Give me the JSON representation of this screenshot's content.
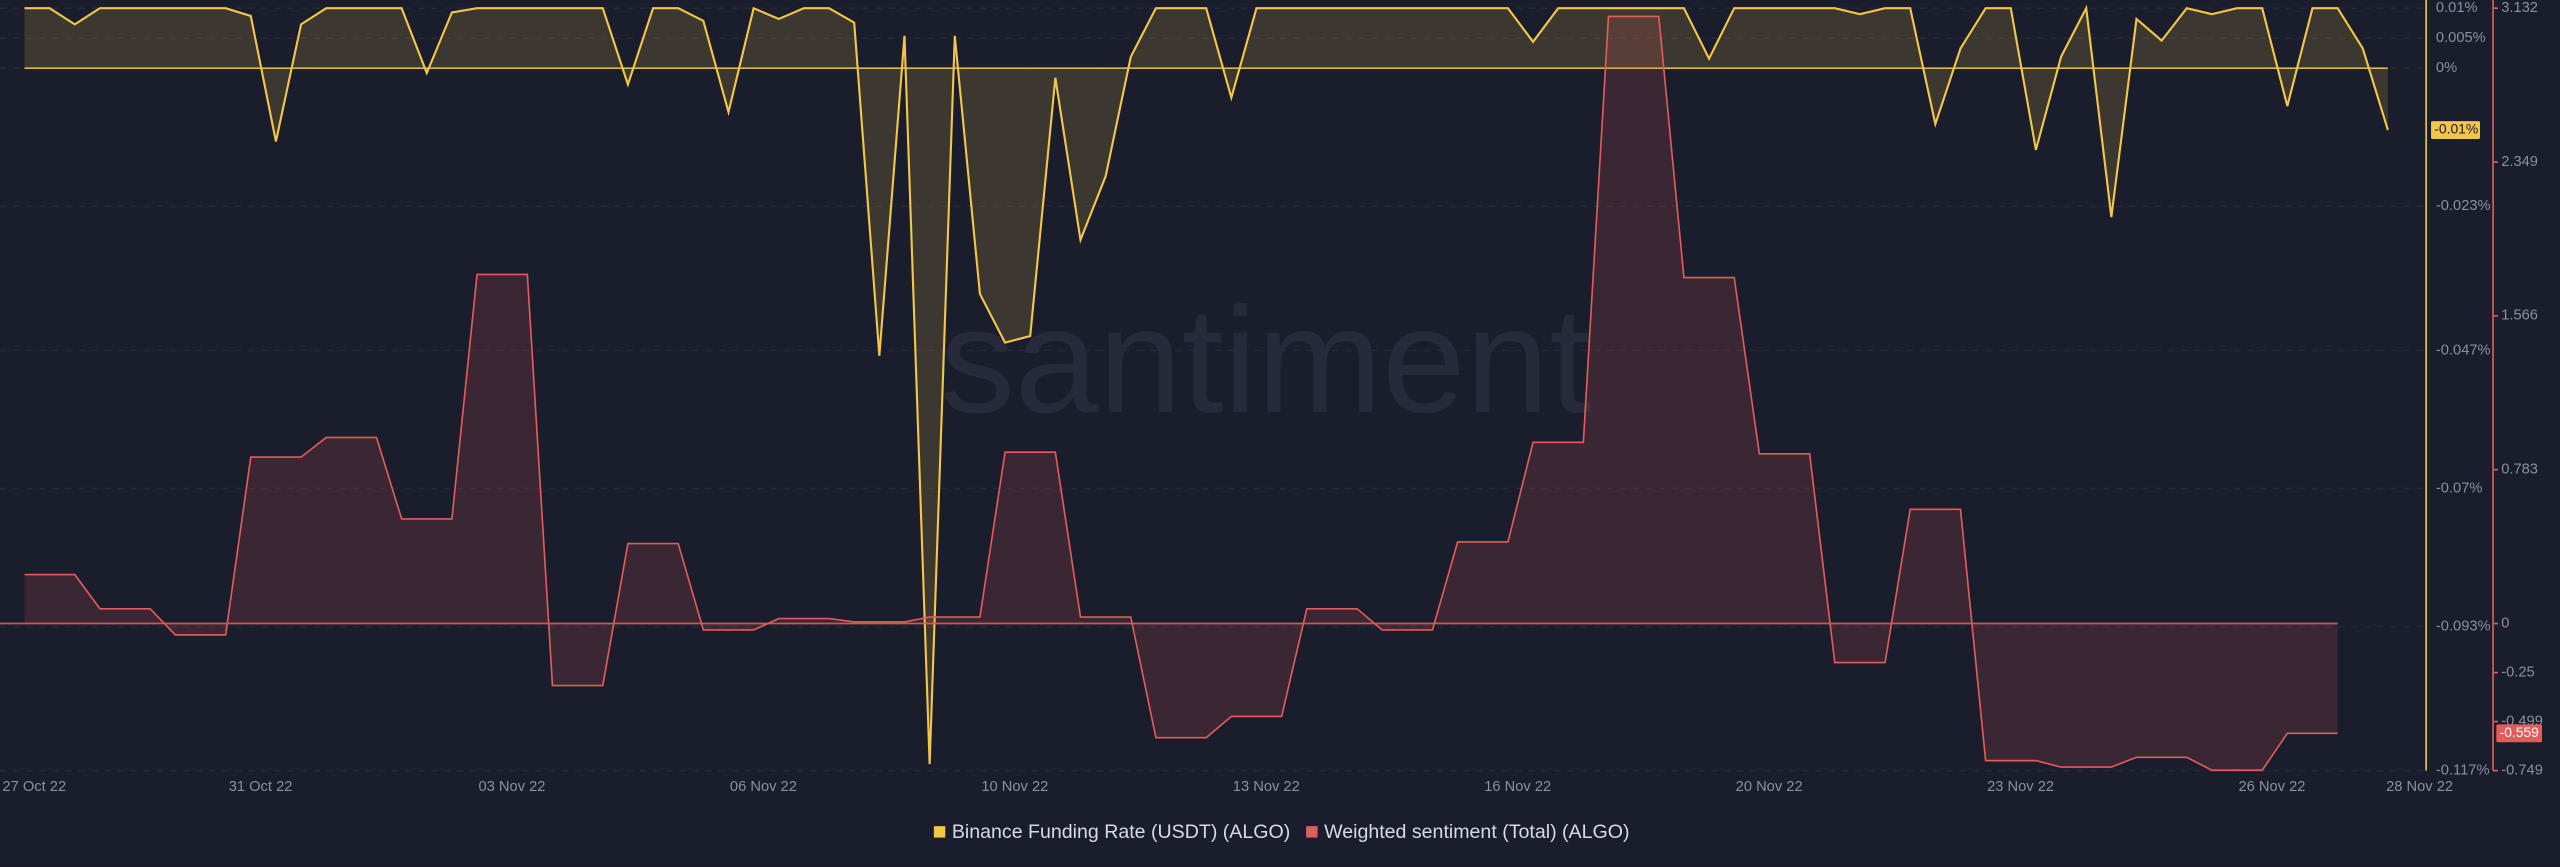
{
  "chart_data": {
    "type": "line",
    "watermark": "santiment",
    "categories": [
      "27 Oct 22",
      null,
      null,
      null,
      null,
      null,
      null,
      null,
      null,
      "31 Oct 22",
      null,
      null,
      null,
      null,
      null,
      null,
      null,
      null,
      null,
      "03 Nov 22",
      null,
      null,
      null,
      null,
      null,
      null,
      null,
      null,
      null,
      "06 Nov 22",
      null,
      null,
      null,
      null,
      null,
      null,
      null,
      null,
      null,
      "10 Nov 22",
      null,
      null,
      null,
      null,
      null,
      null,
      null,
      null,
      null,
      "13 Nov 22",
      null,
      null,
      null,
      null,
      null,
      null,
      null,
      null,
      null,
      "16 Nov 22",
      null,
      null,
      null,
      null,
      null,
      null,
      null,
      null,
      null,
      "20 Nov 22",
      null,
      null,
      null,
      null,
      null,
      null,
      null,
      null,
      null,
      "23 Nov 22",
      null,
      null,
      null,
      null,
      null,
      null,
      null,
      null,
      null,
      "26 Nov 22",
      null,
      null,
      null,
      null,
      null,
      "28 Nov 22"
    ],
    "series": [
      {
        "name": "Binance Funding Rate (USDT) (ALGO)",
        "color": "#f3c64a",
        "badge": "-0.01%",
        "values": [
          0.01,
          0.01,
          0.0073,
          0.01,
          0.01,
          0.01,
          0.01,
          0.01,
          0.01,
          0.0087,
          -0.0122,
          0.0073,
          0.01,
          0.01,
          0.01,
          0.01,
          -0.0008,
          0.0093,
          0.01,
          0.01,
          0.01,
          0.01,
          0.01,
          0.01,
          -0.0027,
          0.01,
          0.01,
          0.0079,
          -0.0073,
          0.01,
          0.0082,
          0.01,
          0.01,
          0.0076,
          -0.0479,
          0.0054,
          -0.1159,
          0.0054,
          -0.0376,
          -0.0457,
          -0.0446,
          -0.0016,
          -0.0286,
          -0.018,
          0.0019,
          0.01,
          0.01,
          0.01,
          -0.0049,
          0.01,
          0.01,
          0.01,
          0.01,
          0.01,
          0.01,
          0.01,
          0.01,
          0.01,
          0.01,
          0.01,
          0.0044,
          0.01,
          0.01,
          0.01,
          0.01,
          0.01,
          0.01,
          0.0016,
          0.01,
          0.01,
          0.01,
          0.01,
          0.01,
          0.009,
          0.01,
          0.01,
          -0.0093,
          0.0033,
          0.01,
          0.01,
          -0.0136,
          0.0019,
          0.01,
          -0.0248,
          0.0082,
          0.0046,
          0.01,
          0.009,
          0.01,
          0.01,
          -0.0063,
          0.01,
          0.01,
          0.0033,
          -0.0103,
          null
        ]
      },
      {
        "name": "Weighted sentiment (Total) (ALGO)",
        "color": "#e45b5b",
        "badge": "-0.559",
        "axis": "y2",
        "values": [
          0.249,
          0.249,
          0.249,
          0.075,
          0.075,
          0.075,
          -0.058,
          -0.058,
          -0.058,
          0.847,
          0.847,
          0.847,
          0.947,
          0.947,
          0.947,
          0.532,
          0.532,
          0.532,
          1.777,
          1.777,
          1.777,
          -0.316,
          -0.316,
          -0.316,
          0.407,
          0.407,
          0.407,
          -0.033,
          -0.033,
          -0.033,
          0.025,
          0.025,
          0.025,
          0.008,
          0.008,
          0.008,
          0.033,
          0.033,
          0.033,
          0.872,
          0.872,
          0.872,
          0.033,
          0.033,
          0.033,
          -0.581,
          -0.581,
          -0.581,
          -0.473,
          -0.473,
          -0.473,
          0.075,
          0.075,
          0.075,
          -0.033,
          -0.033,
          -0.033,
          0.415,
          0.415,
          0.415,
          0.922,
          0.922,
          0.922,
          3.09,
          3.09,
          3.09,
          1.761,
          1.761,
          1.761,
          0.864,
          0.864,
          0.864,
          -0.199,
          -0.199,
          -0.199,
          0.581,
          0.581,
          0.581,
          -0.698,
          -0.698,
          -0.698,
          -0.731,
          -0.731,
          -0.731,
          -0.681,
          -0.681,
          -0.681,
          -0.747,
          -0.747,
          -0.747,
          -0.559,
          -0.559,
          -0.559,
          null,
          null,
          null
        ]
      }
    ],
    "ylim": [
      -0.117,
      0.01
    ],
    "yticks": [
      {
        "value": 0.01,
        "label": "0.01%"
      },
      {
        "value": 0.005,
        "label": "0.005%"
      },
      {
        "value": 0,
        "label": "0%"
      },
      {
        "value": -0.023,
        "label": "-0.023%"
      },
      {
        "value": -0.047,
        "label": "-0.047%"
      },
      {
        "value": -0.07,
        "label": "-0.07%"
      },
      {
        "value": -0.093,
        "label": "-0.093%"
      },
      {
        "value": -0.117,
        "label": "-0.117%"
      }
    ],
    "y2lim": [
      -0.749,
      3.132
    ],
    "y2ticks": [
      3.132,
      2.349,
      1.566,
      0.783,
      0,
      -0.25,
      -0.499,
      -0.749
    ],
    "grid": true,
    "legend": "bottom"
  }
}
